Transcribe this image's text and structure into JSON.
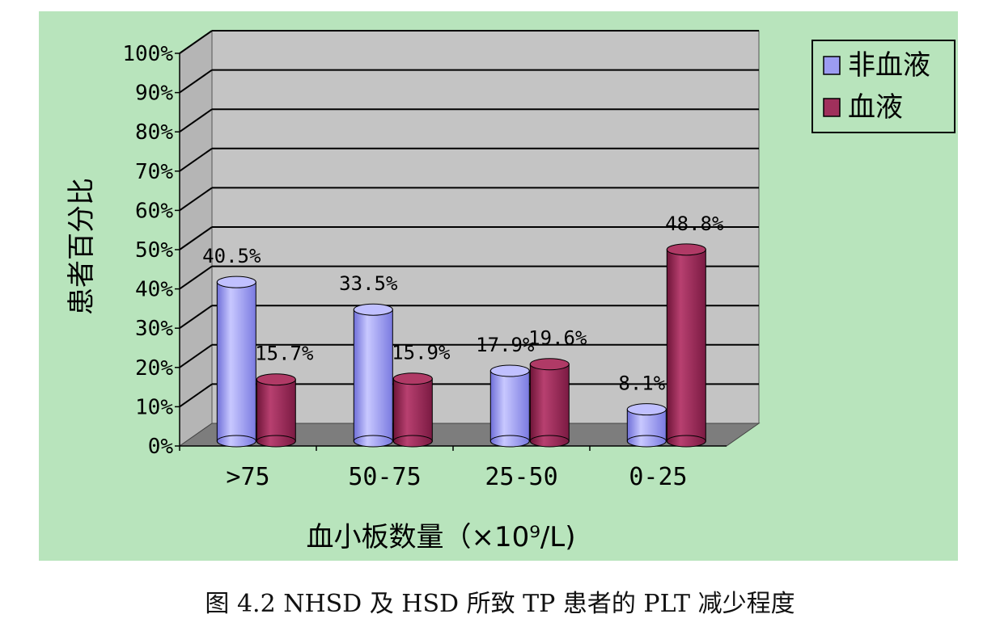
{
  "caption": "图 4.2   NHSD 及 HSD 所致 TP 患者的 PLT 减少程度",
  "colors": {
    "background": "#b8e4bc",
    "plot_wall": "#c4c4c4",
    "floor": "#7d7d7d",
    "series_1": "#9c9cf2",
    "series_2": "#a0305c"
  },
  "chart_data": {
    "type": "bar",
    "style": "3d-cylinder",
    "title": "",
    "xlabel": "血小板数量（×10⁹/L)",
    "ylabel": "患者百分比",
    "ylim": [
      0,
      100
    ],
    "yticks": [
      "0%",
      "10%",
      "20%",
      "30%",
      "40%",
      "50%",
      "60%",
      "70%",
      "80%",
      "90%",
      "100%"
    ],
    "categories": [
      ">75",
      "50-75",
      "25-50",
      "0-25"
    ],
    "series": [
      {
        "name": "非血液",
        "values": [
          40.5,
          33.5,
          17.9,
          8.1
        ],
        "labels": [
          "40.5%",
          "33.5%",
          "17.9%",
          "8.1%"
        ]
      },
      {
        "name": "血液",
        "values": [
          15.7,
          15.9,
          19.6,
          48.8
        ],
        "labels": [
          "15.7%",
          "15.9%",
          "19.6%",
          "48.8%"
        ]
      }
    ],
    "grid": true,
    "legend_position": "top-right"
  }
}
